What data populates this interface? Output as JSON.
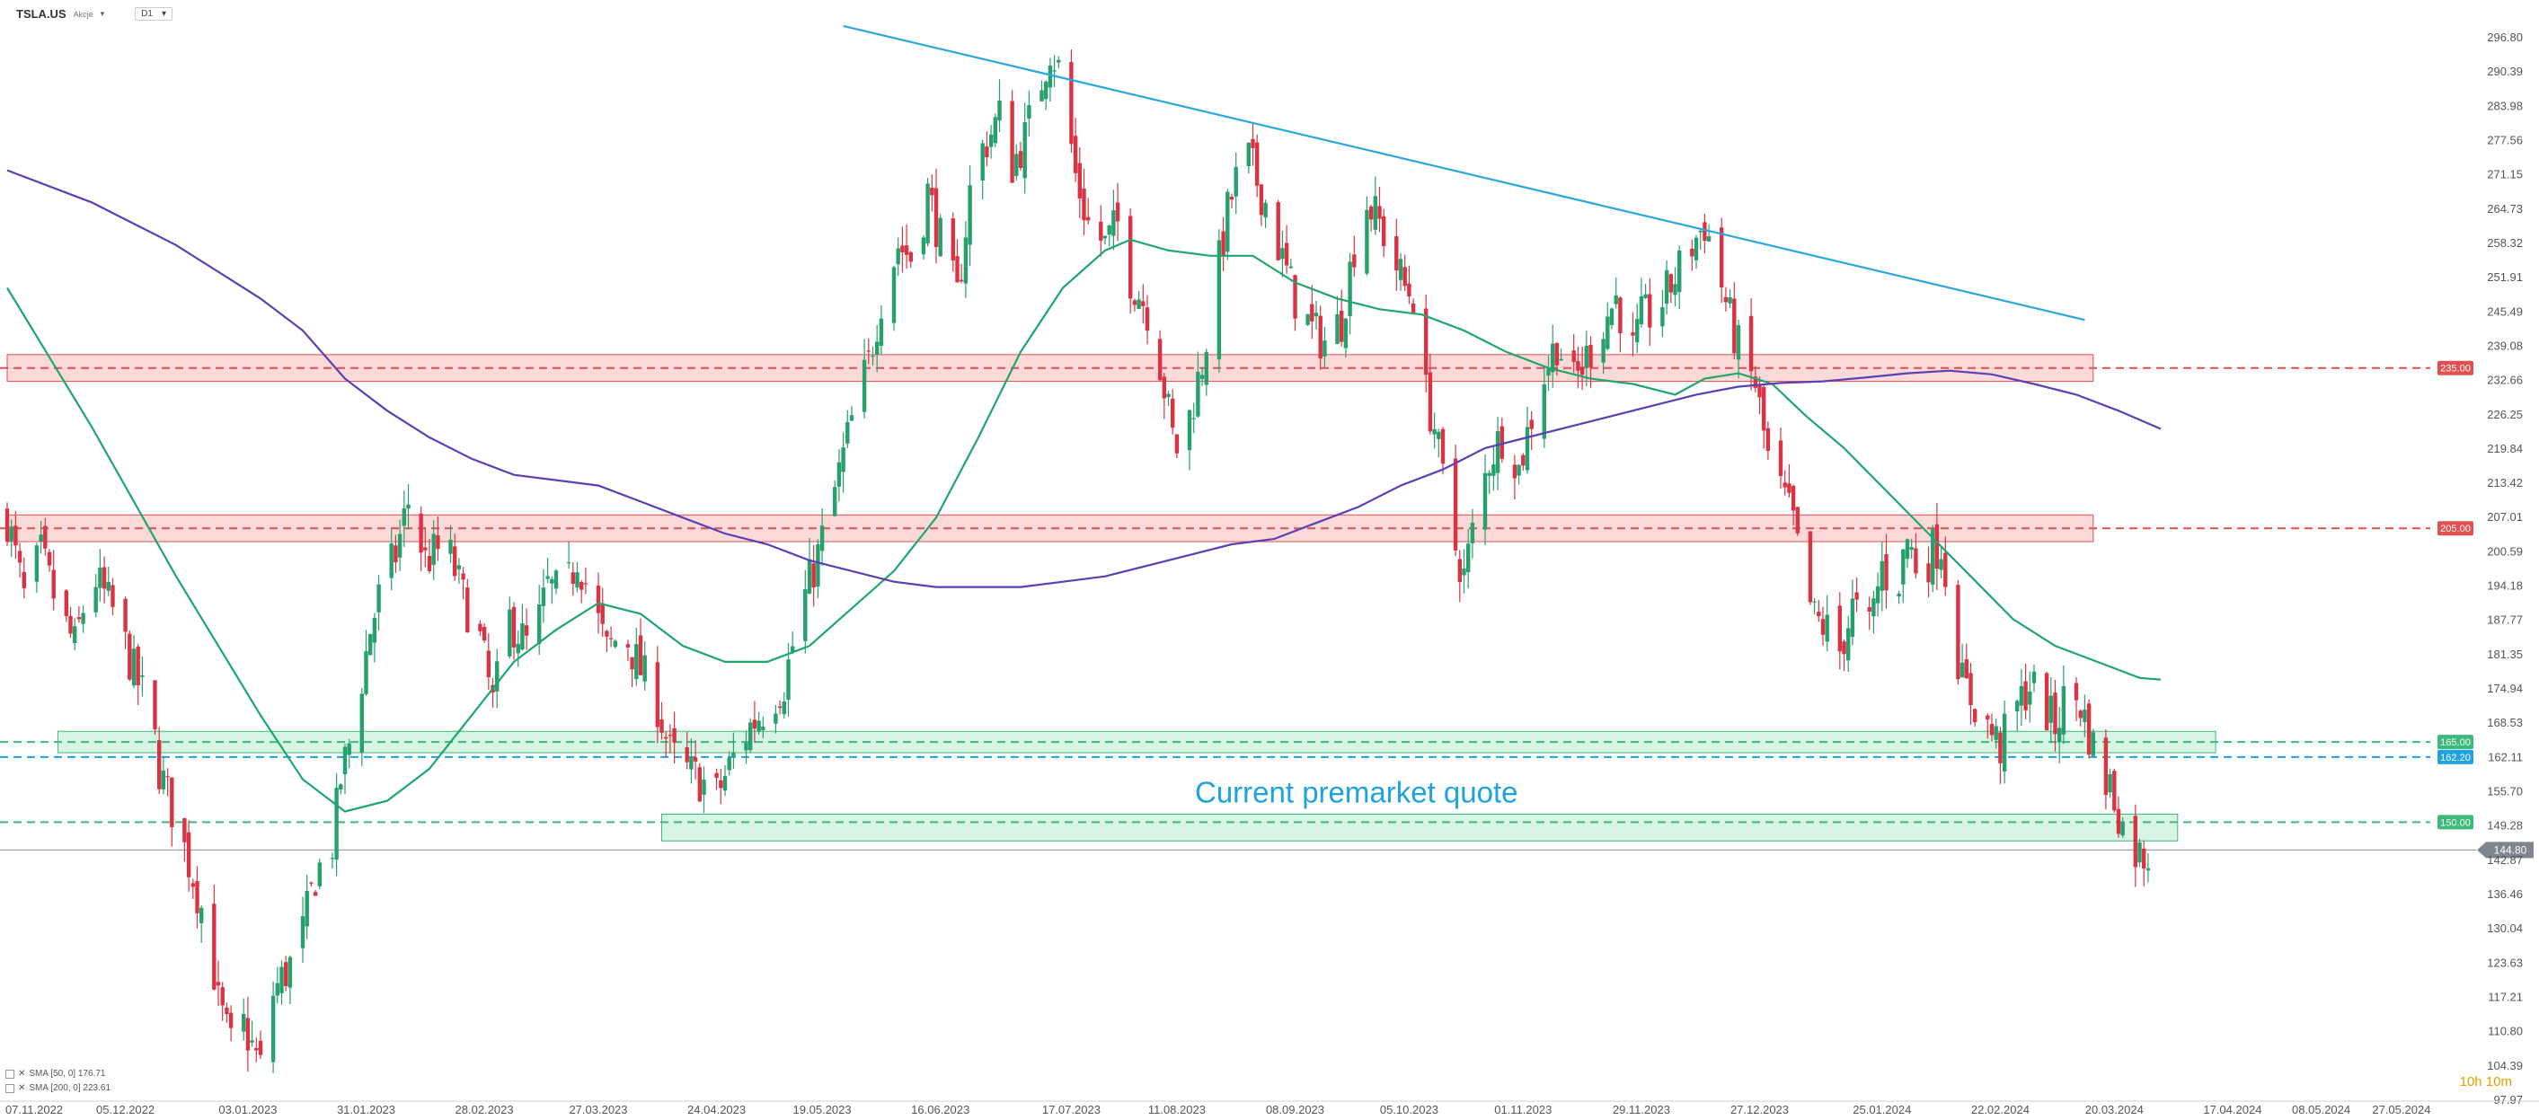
{
  "header": {
    "symbol": "TSLA.US",
    "type": "Akcje",
    "timeframe": "D1"
  },
  "indicators": [
    {
      "label": "SMA [50, 0] 176.71",
      "color": "#1fa56e"
    },
    {
      "label": "SMA [200, 0] 223.61",
      "color": "#5b3fb5"
    }
  ],
  "timer": "10h 10m",
  "colors": {
    "up": "#26a06c",
    "down": "#d93344",
    "trendline": "#2aa6e0",
    "resistance": "#e05050",
    "support": "#3cba7a",
    "sma50": "#1fa56e",
    "sma200": "#5b3fb5",
    "annotation": "#1ea3e0"
  },
  "chart_data": {
    "type": "candlestick",
    "ylim": [
      97.97,
      300.0
    ],
    "yticks": [
      "296.80",
      "290.39",
      "283.98",
      "277.56",
      "271.15",
      "264.73",
      "258.32",
      "251.91",
      "245.49",
      "239.08",
      "232.66",
      "226.25",
      "219.84",
      "213.42",
      "207.01",
      "200.59",
      "194.18",
      "187.77",
      "181.35",
      "174.94",
      "168.53",
      "162.11",
      "155.70",
      "149.28",
      "142.87",
      "136.46",
      "130.04",
      "123.63",
      "117.21",
      "110.80",
      "104.39",
      "97.97"
    ],
    "xticks": [
      {
        "label": "07.11.2022",
        "d": 0
      },
      {
        "label": "05.12.2022",
        "d": 28
      },
      {
        "label": "03.01.2023",
        "d": 57
      },
      {
        "label": "31.01.2023",
        "d": 85
      },
      {
        "label": "28.02.2023",
        "d": 113
      },
      {
        "label": "27.03.2023",
        "d": 140
      },
      {
        "label": "24.04.2023",
        "d": 168
      },
      {
        "label": "19.05.2023",
        "d": 193
      },
      {
        "label": "16.06.2023",
        "d": 221
      },
      {
        "label": "17.07.2023",
        "d": 252
      },
      {
        "label": "11.08.2023",
        "d": 277
      },
      {
        "label": "08.09.2023",
        "d": 305
      },
      {
        "label": "05.10.2023",
        "d": 332
      },
      {
        "label": "01.11.2023",
        "d": 359
      },
      {
        "label": "29.11.2023",
        "d": 387
      },
      {
        "label": "27.12.2023",
        "d": 415
      },
      {
        "label": "25.01.2024",
        "d": 444
      },
      {
        "label": "22.02.2024",
        "d": 472
      },
      {
        "label": "20.03.2024",
        "d": 499
      },
      {
        "label": "17.04.2024",
        "d": 527
      },
      {
        "label": "08.05.2024",
        "d": 548
      },
      {
        "label": "27.05.2024",
        "d": 567
      }
    ],
    "xlim": [
      0,
      584
    ],
    "anchors": [
      [
        0,
        207
      ],
      [
        4,
        192
      ],
      [
        8,
        200
      ],
      [
        12,
        190
      ],
      [
        16,
        183
      ],
      [
        20,
        197
      ],
      [
        26,
        188
      ],
      [
        30,
        178
      ],
      [
        34,
        170
      ],
      [
        36,
        160
      ],
      [
        40,
        150
      ],
      [
        44,
        140
      ],
      [
        48,
        128
      ],
      [
        50,
        116
      ],
      [
        53,
        108
      ],
      [
        56,
        112
      ],
      [
        60,
        104
      ],
      [
        63,
        118
      ],
      [
        66,
        122
      ],
      [
        69,
        126
      ],
      [
        73,
        140
      ],
      [
        77,
        146
      ],
      [
        79,
        158
      ],
      [
        82,
        168
      ],
      [
        86,
        186
      ],
      [
        88,
        192
      ],
      [
        92,
        200
      ],
      [
        95,
        210
      ],
      [
        99,
        199
      ],
      [
        104,
        202
      ],
      [
        108,
        192
      ],
      [
        112,
        184
      ],
      [
        115,
        172
      ],
      [
        119,
        188
      ],
      [
        124,
        182
      ],
      [
        128,
        194
      ],
      [
        132,
        192
      ],
      [
        135,
        200
      ],
      [
        139,
        190
      ],
      [
        142,
        182
      ],
      [
        146,
        186
      ],
      [
        149,
        180
      ],
      [
        154,
        172
      ],
      [
        157,
        163
      ],
      [
        160,
        160
      ],
      [
        164,
        158
      ],
      [
        168,
        155
      ],
      [
        172,
        162
      ],
      [
        176,
        168
      ],
      [
        180,
        172
      ],
      [
        184,
        176
      ],
      [
        188,
        190
      ],
      [
        192,
        200
      ],
      [
        196,
        212
      ],
      [
        200,
        225
      ],
      [
        204,
        236
      ],
      [
        207,
        248
      ],
      [
        211,
        258
      ],
      [
        215,
        255
      ],
      [
        218,
        268
      ],
      [
        221,
        259
      ],
      [
        225,
        248
      ],
      [
        228,
        268
      ],
      [
        231,
        276
      ],
      [
        235,
        282
      ],
      [
        238,
        273
      ],
      [
        241,
        278
      ],
      [
        244,
        286
      ],
      [
        247,
        295
      ],
      [
        249,
        291
      ],
      [
        251,
        282
      ],
      [
        253,
        271
      ],
      [
        256,
        262
      ],
      [
        260,
        258
      ],
      [
        263,
        262
      ],
      [
        266,
        252
      ],
      [
        270,
        246
      ],
      [
        273,
        236
      ],
      [
        276,
        222
      ],
      [
        278,
        218
      ],
      [
        280,
        226
      ],
      [
        283,
        236
      ],
      [
        286,
        250
      ],
      [
        289,
        264
      ],
      [
        293,
        276
      ],
      [
        296,
        270
      ],
      [
        299,
        264
      ],
      [
        302,
        255
      ],
      [
        305,
        248
      ],
      [
        309,
        242
      ],
      [
        312,
        240
      ],
      [
        316,
        244
      ],
      [
        319,
        258
      ],
      [
        322,
        266
      ],
      [
        325,
        262
      ],
      [
        328,
        256
      ],
      [
        331,
        250
      ],
      [
        334,
        248
      ],
      [
        336,
        230
      ],
      [
        338,
        224
      ],
      [
        340,
        214
      ],
      [
        342,
        204
      ],
      [
        345,
        196
      ],
      [
        347,
        204
      ],
      [
        351,
        218
      ],
      [
        355,
        224
      ],
      [
        358,
        216
      ],
      [
        361,
        226
      ],
      [
        364,
        234
      ],
      [
        367,
        240
      ],
      [
        371,
        232
      ],
      [
        374,
        237
      ],
      [
        377,
        242
      ],
      [
        381,
        248
      ],
      [
        385,
        238
      ],
      [
        387,
        244
      ],
      [
        391,
        246
      ],
      [
        395,
        252
      ],
      [
        399,
        258
      ],
      [
        402,
        262
      ],
      [
        405,
        254
      ],
      [
        408,
        244
      ],
      [
        411,
        236
      ],
      [
        414,
        232
      ],
      [
        417,
        218
      ],
      [
        420,
        212
      ],
      [
        423,
        206
      ],
      [
        425,
        196
      ],
      [
        428,
        188
      ],
      [
        431,
        186
      ],
      [
        434,
        182
      ],
      [
        437,
        190
      ],
      [
        441,
        186
      ],
      [
        444,
        198
      ],
      [
        447,
        192
      ],
      [
        450,
        203
      ],
      [
        453,
        196
      ],
      [
        456,
        201
      ],
      [
        458,
        202
      ],
      [
        461,
        186
      ],
      [
        463,
        176
      ],
      [
        466,
        172
      ],
      [
        469,
        168
      ],
      [
        472,
        164
      ],
      [
        475,
        170
      ],
      [
        479,
        176
      ],
      [
        482,
        172
      ],
      [
        485,
        168
      ],
      [
        488,
        175
      ],
      [
        491,
        172
      ],
      [
        494,
        164
      ],
      [
        496,
        158
      ],
      [
        498,
        157
      ],
      [
        500,
        152
      ],
      [
        502,
        146
      ],
      [
        505,
        144
      ],
      [
        507,
        144
      ]
    ],
    "sma50": [
      [
        0,
        250
      ],
      [
        20,
        224
      ],
      [
        40,
        196
      ],
      [
        60,
        170
      ],
      [
        70,
        158
      ],
      [
        80,
        152
      ],
      [
        90,
        154
      ],
      [
        100,
        160
      ],
      [
        110,
        170
      ],
      [
        120,
        180
      ],
      [
        130,
        186
      ],
      [
        140,
        191
      ],
      [
        150,
        189
      ],
      [
        160,
        183
      ],
      [
        170,
        180
      ],
      [
        180,
        180
      ],
      [
        190,
        183
      ],
      [
        200,
        190
      ],
      [
        210,
        197
      ],
      [
        220,
        207
      ],
      [
        230,
        222
      ],
      [
        240,
        238
      ],
      [
        250,
        250
      ],
      [
        260,
        257
      ],
      [
        266,
        259
      ],
      [
        275,
        257
      ],
      [
        285,
        256
      ],
      [
        295,
        256
      ],
      [
        305,
        251
      ],
      [
        315,
        248
      ],
      [
        325,
        246
      ],
      [
        335,
        245
      ],
      [
        345,
        242
      ],
      [
        355,
        238
      ],
      [
        365,
        235
      ],
      [
        375,
        233
      ],
      [
        385,
        232
      ],
      [
        395,
        230
      ],
      [
        402,
        233
      ],
      [
        410,
        234
      ],
      [
        418,
        232
      ],
      [
        426,
        226
      ],
      [
        435,
        220
      ],
      [
        445,
        212
      ],
      [
        455,
        204
      ],
      [
        465,
        196
      ],
      [
        475,
        188
      ],
      [
        485,
        183
      ],
      [
        495,
        180
      ],
      [
        505,
        177
      ],
      [
        510,
        176.7
      ]
    ],
    "sma200": [
      [
        0,
        272
      ],
      [
        20,
        266
      ],
      [
        40,
        258
      ],
      [
        60,
        248
      ],
      [
        70,
        242
      ],
      [
        80,
        233
      ],
      [
        90,
        227
      ],
      [
        100,
        222
      ],
      [
        110,
        218
      ],
      [
        120,
        215
      ],
      [
        130,
        214
      ],
      [
        140,
        213
      ],
      [
        150,
        210
      ],
      [
        160,
        207
      ],
      [
        170,
        204
      ],
      [
        180,
        202
      ],
      [
        190,
        199
      ],
      [
        200,
        197
      ],
      [
        210,
        195
      ],
      [
        220,
        194
      ],
      [
        230,
        194
      ],
      [
        240,
        194
      ],
      [
        250,
        195
      ],
      [
        260,
        196
      ],
      [
        270,
        198
      ],
      [
        280,
        200
      ],
      [
        290,
        202
      ],
      [
        300,
        203
      ],
      [
        310,
        206
      ],
      [
        320,
        209
      ],
      [
        330,
        213
      ],
      [
        340,
        216
      ],
      [
        350,
        220
      ],
      [
        360,
        222
      ],
      [
        370,
        224
      ],
      [
        380,
        226
      ],
      [
        390,
        228
      ],
      [
        400,
        230
      ],
      [
        410,
        231.5
      ],
      [
        420,
        232.2
      ],
      [
        430,
        232.5
      ],
      [
        440,
        233.2
      ],
      [
        450,
        234
      ],
      [
        460,
        234.5
      ],
      [
        470,
        233.8
      ],
      [
        480,
        232
      ],
      [
        490,
        230
      ],
      [
        500,
        227
      ],
      [
        510,
        223.6
      ]
    ],
    "trendline": [
      [
        198,
        299
      ],
      [
        492,
        244
      ]
    ],
    "resistance_zones": [
      {
        "from": 232.5,
        "to": 237.5,
        "x1": 0,
        "x2": 494,
        "level": "235.00"
      },
      {
        "from": 202.5,
        "to": 207.5,
        "x1": 0,
        "x2": 494,
        "level": "205.00"
      }
    ],
    "support_zones": [
      {
        "from": 163.0,
        "to": 167.0,
        "x1": 12,
        "x2": 523,
        "level": "165.00"
      },
      {
        "from": 146.5,
        "to": 151.5,
        "x1": 155,
        "x2": 514,
        "level": "150.00"
      }
    ],
    "dashed_levels": [
      {
        "value": 235.0,
        "label": "235.00",
        "color": "#e05050"
      },
      {
        "value": 205.0,
        "label": "205.00",
        "color": "#e05050"
      },
      {
        "value": 165.0,
        "label": "165.00",
        "color": "#3cba7a"
      },
      {
        "value": 162.2,
        "label": "162.20",
        "color": "#1ea3e0"
      },
      {
        "value": 150.0,
        "label": "150.00",
        "color": "#3cba7a"
      }
    ],
    "current_price": {
      "value": 144.8,
      "label": "144.80"
    },
    "annotation": "Current premarket quote"
  }
}
